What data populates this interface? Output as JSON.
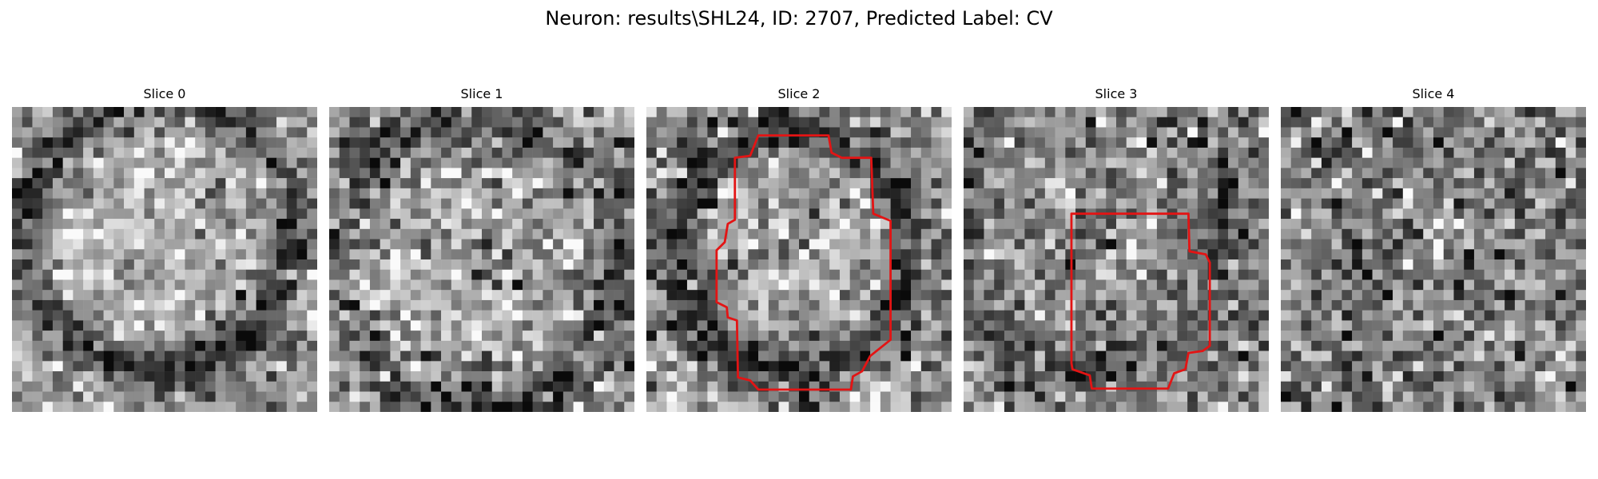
{
  "figure": {
    "title": "Neuron: results\\SHL24, ID: 2707, Predicted Label: CV"
  },
  "image": {
    "colormap": "gray",
    "grid_cells_per_side": 30,
    "contour_color": "#e31414"
  },
  "slices": [
    {
      "title": "Slice 0",
      "has_contour": false
    },
    {
      "title": "Slice 1",
      "has_contour": false
    },
    {
      "title": "Slice 2",
      "has_contour": true
    },
    {
      "title": "Slice 3",
      "has_contour": true
    },
    {
      "title": "Slice 4",
      "has_contour": false
    }
  ]
}
